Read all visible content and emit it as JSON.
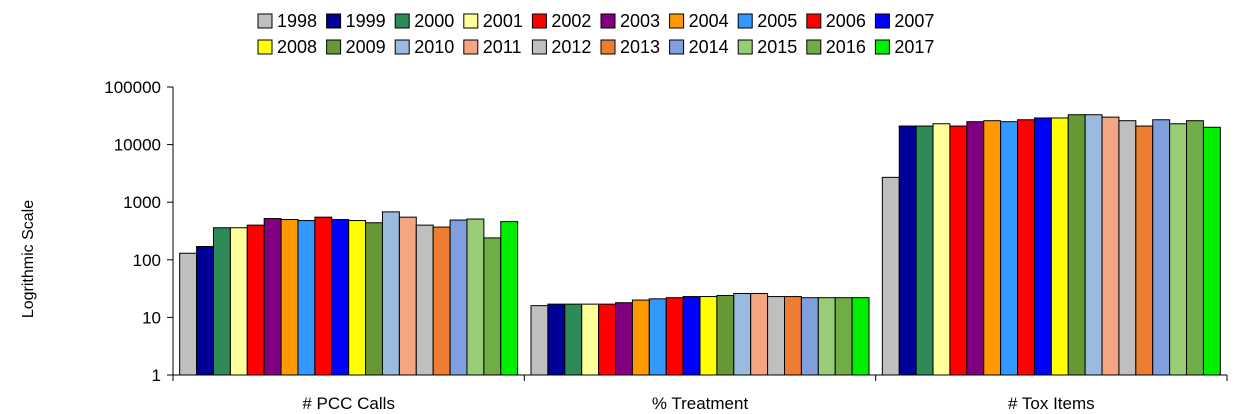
{
  "chart_data": {
    "type": "bar",
    "y_scale": "log",
    "ylabel": "Logrithmic Scale",
    "ylim": [
      1,
      100000
    ],
    "y_ticks": [
      "1",
      "10",
      "100",
      "1000",
      "10000",
      "100000"
    ],
    "legend_position": "top",
    "grid": false,
    "categories": [
      "# PCC Calls",
      "% Treatment",
      "# Tox Items"
    ],
    "series": [
      {
        "name": "1998",
        "color": "#C0C0C0",
        "values": [
          130,
          16,
          2700
        ]
      },
      {
        "name": "1999",
        "color": "#000099",
        "values": [
          170,
          17,
          21000
        ]
      },
      {
        "name": "2000",
        "color": "#2E8B57",
        "values": [
          360,
          17,
          21000
        ]
      },
      {
        "name": "2001",
        "color": "#FFFF99",
        "values": [
          360,
          17,
          23000
        ]
      },
      {
        "name": "2002",
        "color": "#FF0000",
        "values": [
          400,
          17,
          21000
        ]
      },
      {
        "name": "2003",
        "color": "#800080",
        "values": [
          520,
          18,
          25000
        ]
      },
      {
        "name": "2004",
        "color": "#FF9900",
        "values": [
          500,
          20,
          26000
        ]
      },
      {
        "name": "2005",
        "color": "#3399FF",
        "values": [
          480,
          21,
          25000
        ]
      },
      {
        "name": "2006",
        "color": "#FF0000",
        "values": [
          550,
          22,
          27000
        ]
      },
      {
        "name": "2007",
        "color": "#0000FF",
        "values": [
          500,
          23,
          29000
        ]
      },
      {
        "name": "2008",
        "color": "#FFFF00",
        "values": [
          480,
          23,
          29000
        ]
      },
      {
        "name": "2009",
        "color": "#669933",
        "values": [
          440,
          24,
          33000
        ]
      },
      {
        "name": "2010",
        "color": "#99BBDD",
        "values": [
          680,
          26,
          33000
        ]
      },
      {
        "name": "2011",
        "color": "#F4A582",
        "values": [
          550,
          26,
          30000
        ]
      },
      {
        "name": "2012",
        "color": "#BFBFBF",
        "values": [
          400,
          23,
          26000
        ]
      },
      {
        "name": "2013",
        "color": "#ED7D31",
        "values": [
          370,
          23,
          21000
        ]
      },
      {
        "name": "2014",
        "color": "#7F9FDF",
        "values": [
          490,
          22,
          27000
        ]
      },
      {
        "name": "2015",
        "color": "#99CC77",
        "values": [
          510,
          22,
          23000
        ]
      },
      {
        "name": "2016",
        "color": "#70AD47",
        "values": [
          240,
          22,
          26000
        ]
      },
      {
        "name": "2017",
        "color": "#00EE00",
        "values": [
          460,
          22,
          20000
        ]
      }
    ]
  }
}
